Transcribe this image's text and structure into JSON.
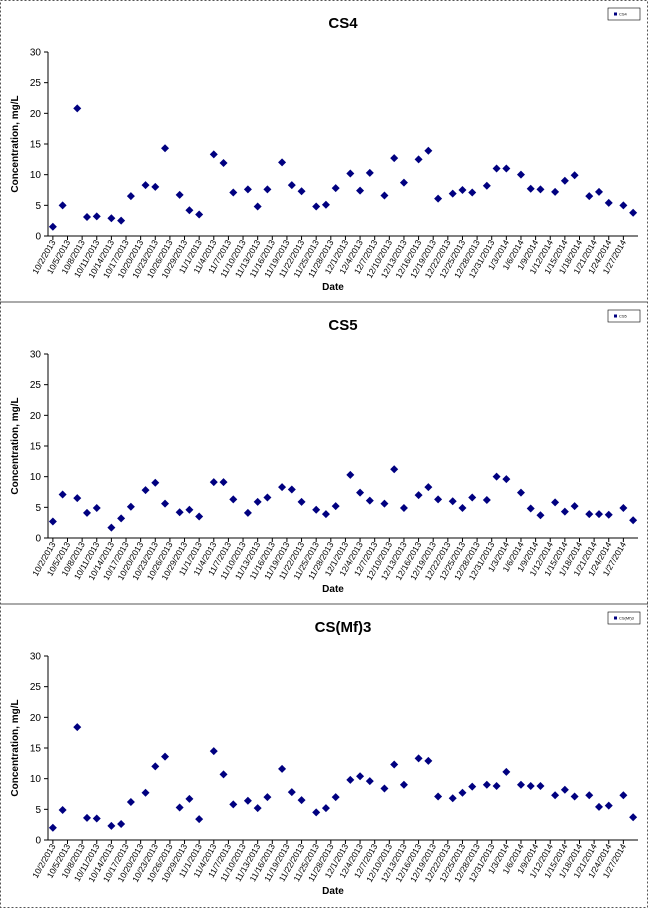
{
  "chart_data": [
    {
      "type": "scatter",
      "title": "CS4",
      "xlabel": "Date",
      "ylabel": "Concentration, mg/L",
      "x": [
        "2013-10-02",
        "2013-10-04",
        "2013-10-07",
        "2013-10-09",
        "2013-10-11",
        "2013-10-14",
        "2013-10-16",
        "2013-10-18",
        "2013-10-21",
        "2013-10-23",
        "2013-10-25",
        "2013-10-28",
        "2013-10-30",
        "2013-11-01",
        "2013-11-04",
        "2013-11-06",
        "2013-11-08",
        "2013-11-11",
        "2013-11-13",
        "2013-11-15",
        "2013-11-18",
        "2013-11-20",
        "2013-11-22",
        "2013-11-25",
        "2013-11-27",
        "2013-11-29",
        "2013-12-02",
        "2013-12-04",
        "2013-12-06",
        "2013-12-09",
        "2013-12-11",
        "2013-12-13",
        "2013-12-16",
        "2013-12-18",
        "2013-12-20",
        "2013-12-23",
        "2013-12-25",
        "2013-12-27",
        "2013-12-30",
        "2014-01-01",
        "2014-01-03",
        "2014-01-06",
        "2014-01-08",
        "2014-01-10",
        "2014-01-13",
        "2014-01-15",
        "2014-01-17",
        "2014-01-20",
        "2014-01-22",
        "2014-01-24",
        "2014-01-27",
        "2014-01-29"
      ],
      "series": [
        {
          "name": "CS4",
          "color": "#000080",
          "values": [
            1.5,
            5,
            20.8,
            3.1,
            3.2,
            2.9,
            2.5,
            6.5,
            8.3,
            8,
            14.3,
            6.7,
            4.2,
            3.5,
            13.3,
            11.9,
            7.1,
            7.6,
            4.8,
            7.6,
            12,
            8.3,
            7.3,
            4.8,
            5.1,
            7.8,
            10.2,
            7.4,
            10.3,
            6.6,
            12.7,
            8.7,
            12.5,
            13.9,
            6.1,
            6.9,
            7.5,
            7.1,
            8.2,
            11,
            11,
            10,
            7.7,
            7.6,
            7.2,
            9,
            9.9,
            6.5,
            7.2,
            5.4,
            5,
            3.8
          ]
        }
      ],
      "xlim": [
        "2013-10-01",
        "2014-01-30"
      ],
      "xticks": [
        {
          "value": "2013-10-02",
          "label": "10/2/2013"
        },
        {
          "value": "2013-10-05",
          "label": "10/5/2013"
        },
        {
          "value": "2013-10-08",
          "label": "10/8/2013"
        },
        {
          "value": "2013-10-11",
          "label": "10/11/2013"
        },
        {
          "value": "2013-10-14",
          "label": "10/14/2013"
        },
        {
          "value": "2013-10-17",
          "label": "10/17/2013"
        },
        {
          "value": "2013-10-20",
          "label": "10/20/2013"
        },
        {
          "value": "2013-10-23",
          "label": "10/23/2013"
        },
        {
          "value": "2013-10-26",
          "label": "10/26/2013"
        },
        {
          "value": "2013-10-29",
          "label": "10/29/2013"
        },
        {
          "value": "2013-11-01",
          "label": "11/1/2013"
        },
        {
          "value": "2013-11-04",
          "label": "11/4/2013"
        },
        {
          "value": "2013-11-07",
          "label": "11/7/2013"
        },
        {
          "value": "2013-11-10",
          "label": "11/10/2013"
        },
        {
          "value": "2013-11-13",
          "label": "11/13/2013"
        },
        {
          "value": "2013-11-16",
          "label": "11/16/2013"
        },
        {
          "value": "2013-11-19",
          "label": "11/19/2013"
        },
        {
          "value": "2013-11-22",
          "label": "11/22/2013"
        },
        {
          "value": "2013-11-25",
          "label": "11/25/2013"
        },
        {
          "value": "2013-11-28",
          "label": "11/28/2013"
        },
        {
          "value": "2013-12-01",
          "label": "12/1/2013"
        },
        {
          "value": "2013-12-04",
          "label": "12/4/2013"
        },
        {
          "value": "2013-12-07",
          "label": "12/7/2013"
        },
        {
          "value": "2013-12-10",
          "label": "12/10/2013"
        },
        {
          "value": "2013-12-13",
          "label": "12/13/2013"
        },
        {
          "value": "2013-12-16",
          "label": "12/16/2013"
        },
        {
          "value": "2013-12-19",
          "label": "12/19/2013"
        },
        {
          "value": "2013-12-22",
          "label": "12/22/2013"
        },
        {
          "value": "2013-12-25",
          "label": "12/25/2013"
        },
        {
          "value": "2013-12-28",
          "label": "12/28/2013"
        },
        {
          "value": "2013-12-31",
          "label": "12/31/2013"
        },
        {
          "value": "2014-01-03",
          "label": "1/3/2014"
        },
        {
          "value": "2014-01-06",
          "label": "1/6/2014"
        },
        {
          "value": "2014-01-09",
          "label": "1/9/2014"
        },
        {
          "value": "2014-01-12",
          "label": "1/12/2014"
        },
        {
          "value": "2014-01-15",
          "label": "1/15/2014"
        },
        {
          "value": "2014-01-18",
          "label": "1/18/2014"
        },
        {
          "value": "2014-01-21",
          "label": "1/21/2014"
        },
        {
          "value": "2014-01-24",
          "label": "1/24/2014"
        },
        {
          "value": "2014-01-27",
          "label": "1/27/2014"
        }
      ],
      "ylim": [
        0,
        30
      ],
      "yticks": [
        0,
        5,
        10,
        15,
        20,
        25,
        30
      ],
      "grid": false,
      "legend": "top-right"
    },
    {
      "type": "scatter",
      "title": "CS5",
      "xlabel": "Date",
      "ylabel": "Concentration, mg/L",
      "x": [
        "2013-10-02",
        "2013-10-04",
        "2013-10-07",
        "2013-10-09",
        "2013-10-11",
        "2013-10-14",
        "2013-10-16",
        "2013-10-18",
        "2013-10-21",
        "2013-10-23",
        "2013-10-25",
        "2013-10-28",
        "2013-10-30",
        "2013-11-01",
        "2013-11-04",
        "2013-11-06",
        "2013-11-08",
        "2013-11-11",
        "2013-11-13",
        "2013-11-15",
        "2013-11-18",
        "2013-11-20",
        "2013-11-22",
        "2013-11-25",
        "2013-11-27",
        "2013-11-29",
        "2013-12-02",
        "2013-12-04",
        "2013-12-06",
        "2013-12-09",
        "2013-12-11",
        "2013-12-13",
        "2013-12-16",
        "2013-12-18",
        "2013-12-20",
        "2013-12-23",
        "2013-12-25",
        "2013-12-27",
        "2013-12-30",
        "2014-01-01",
        "2014-01-03",
        "2014-01-06",
        "2014-01-08",
        "2014-01-10",
        "2014-01-13",
        "2014-01-15",
        "2014-01-17",
        "2014-01-20",
        "2014-01-22",
        "2014-01-24",
        "2014-01-27",
        "2014-01-29"
      ],
      "series": [
        {
          "name": "CS5",
          "color": "#000080",
          "values": [
            2.7,
            7.1,
            6.5,
            4.1,
            4.9,
            1.7,
            3.2,
            5.1,
            7.8,
            9,
            5.6,
            4.2,
            4.6,
            3.5,
            9.1,
            9.1,
            6.3,
            4.1,
            5.9,
            6.6,
            8.3,
            7.9,
            5.9,
            4.6,
            3.9,
            5.2,
            10.3,
            7.4,
            6.1,
            5.6,
            11.2,
            4.9,
            7,
            8.3,
            6.3,
            6,
            4.9,
            6.6,
            6.2,
            10,
            9.6,
            7.4,
            4.8,
            3.7,
            5.8,
            4.3,
            5.2,
            3.9,
            3.9,
            3.8,
            4.9,
            2.9
          ]
        }
      ],
      "xlim": [
        "2013-10-01",
        "2014-01-30"
      ],
      "xticks": [
        {
          "value": "2013-10-02",
          "label": "10/2/2013"
        },
        {
          "value": "2013-10-05",
          "label": "10/5/2013"
        },
        {
          "value": "2013-10-08",
          "label": "10/8/2013"
        },
        {
          "value": "2013-10-11",
          "label": "10/11/2013"
        },
        {
          "value": "2013-10-14",
          "label": "10/14/2013"
        },
        {
          "value": "2013-10-17",
          "label": "10/17/2013"
        },
        {
          "value": "2013-10-20",
          "label": "10/20/2013"
        },
        {
          "value": "2013-10-23",
          "label": "10/23/2013"
        },
        {
          "value": "2013-10-26",
          "label": "10/26/2013"
        },
        {
          "value": "2013-10-29",
          "label": "10/29/2013"
        },
        {
          "value": "2013-11-01",
          "label": "11/1/2013"
        },
        {
          "value": "2013-11-04",
          "label": "11/4/2013"
        },
        {
          "value": "2013-11-07",
          "label": "11/7/2013"
        },
        {
          "value": "2013-11-10",
          "label": "11/10/2013"
        },
        {
          "value": "2013-11-13",
          "label": "11/13/2013"
        },
        {
          "value": "2013-11-16",
          "label": "11/16/2013"
        },
        {
          "value": "2013-11-19",
          "label": "11/19/2013"
        },
        {
          "value": "2013-11-22",
          "label": "11/22/2013"
        },
        {
          "value": "2013-11-25",
          "label": "11/25/2013"
        },
        {
          "value": "2013-11-28",
          "label": "11/28/2013"
        },
        {
          "value": "2013-12-01",
          "label": "12/1/2013"
        },
        {
          "value": "2013-12-04",
          "label": "12/4/2013"
        },
        {
          "value": "2013-12-07",
          "label": "12/7/2013"
        },
        {
          "value": "2013-12-10",
          "label": "12/10/2013"
        },
        {
          "value": "2013-12-13",
          "label": "12/13/2013"
        },
        {
          "value": "2013-12-16",
          "label": "12/16/2013"
        },
        {
          "value": "2013-12-19",
          "label": "12/19/2013"
        },
        {
          "value": "2013-12-22",
          "label": "12/22/2013"
        },
        {
          "value": "2013-12-25",
          "label": "12/25/2013"
        },
        {
          "value": "2013-12-28",
          "label": "12/28/2013"
        },
        {
          "value": "2013-12-31",
          "label": "12/31/2013"
        },
        {
          "value": "2014-01-03",
          "label": "1/3/2014"
        },
        {
          "value": "2014-01-06",
          "label": "1/6/2014"
        },
        {
          "value": "2014-01-09",
          "label": "1/9/2014"
        },
        {
          "value": "2014-01-12",
          "label": "1/12/2014"
        },
        {
          "value": "2014-01-15",
          "label": "1/15/2014"
        },
        {
          "value": "2014-01-18",
          "label": "1/18/2014"
        },
        {
          "value": "2014-01-21",
          "label": "1/21/2014"
        },
        {
          "value": "2014-01-24",
          "label": "1/24/2014"
        },
        {
          "value": "2014-01-27",
          "label": "1/27/2014"
        }
      ],
      "ylim": [
        0,
        30
      ],
      "yticks": [
        0,
        5,
        10,
        15,
        20,
        25,
        30
      ],
      "grid": false,
      "legend": "top-right"
    },
    {
      "type": "scatter",
      "title": "CS(Mf)3",
      "xlabel": "Date",
      "ylabel": "Concentration, mg/L",
      "x": [
        "2013-10-02",
        "2013-10-04",
        "2013-10-07",
        "2013-10-09",
        "2013-10-11",
        "2013-10-14",
        "2013-10-16",
        "2013-10-18",
        "2013-10-21",
        "2013-10-23",
        "2013-10-25",
        "2013-10-28",
        "2013-10-30",
        "2013-11-01",
        "2013-11-04",
        "2013-11-06",
        "2013-11-08",
        "2013-11-11",
        "2013-11-13",
        "2013-11-15",
        "2013-11-18",
        "2013-11-20",
        "2013-11-22",
        "2013-11-25",
        "2013-11-27",
        "2013-11-29",
        "2013-12-02",
        "2013-12-04",
        "2013-12-06",
        "2013-12-09",
        "2013-12-11",
        "2013-12-13",
        "2013-12-16",
        "2013-12-18",
        "2013-12-20",
        "2013-12-23",
        "2013-12-25",
        "2013-12-27",
        "2013-12-30",
        "2014-01-01",
        "2014-01-03",
        "2014-01-06",
        "2014-01-08",
        "2014-01-10",
        "2014-01-13",
        "2014-01-15",
        "2014-01-17",
        "2014-01-20",
        "2014-01-22",
        "2014-01-24",
        "2014-01-27",
        "2014-01-29"
      ],
      "series": [
        {
          "name": "CS(Mf)3",
          "color": "#000080",
          "values": [
            2,
            4.9,
            18.4,
            3.6,
            3.5,
            2.3,
            2.6,
            6.2,
            7.7,
            12,
            13.6,
            5.3,
            6.7,
            3.4,
            14.5,
            10.7,
            5.8,
            6.4,
            5.2,
            7,
            11.6,
            7.8,
            6.5,
            4.5,
            5.2,
            7,
            9.8,
            10.4,
            9.6,
            8.4,
            12.3,
            9,
            13.3,
            12.9,
            7.1,
            6.8,
            7.7,
            8.7,
            9,
            8.8,
            11.1,
            9,
            8.8,
            8.8,
            7.3,
            8.2,
            7.1,
            7.3,
            5.4,
            5.6,
            7.3,
            3.7
          ]
        }
      ],
      "xlim": [
        "2013-10-01",
        "2014-01-30"
      ],
      "xticks": [
        {
          "value": "2013-10-02",
          "label": "10/2/2013"
        },
        {
          "value": "2013-10-05",
          "label": "10/5/2013"
        },
        {
          "value": "2013-10-08",
          "label": "10/8/2013"
        },
        {
          "value": "2013-10-11",
          "label": "10/11/2013"
        },
        {
          "value": "2013-10-14",
          "label": "10/14/2013"
        },
        {
          "value": "2013-10-17",
          "label": "10/17/2013"
        },
        {
          "value": "2013-10-20",
          "label": "10/20/2013"
        },
        {
          "value": "2013-10-23",
          "label": "10/23/2013"
        },
        {
          "value": "2013-10-26",
          "label": "10/26/2013"
        },
        {
          "value": "2013-10-29",
          "label": "10/29/2013"
        },
        {
          "value": "2013-11-01",
          "label": "11/1/2013"
        },
        {
          "value": "2013-11-04",
          "label": "11/4/2013"
        },
        {
          "value": "2013-11-07",
          "label": "11/7/2013"
        },
        {
          "value": "2013-11-10",
          "label": "11/10/2013"
        },
        {
          "value": "2013-11-13",
          "label": "11/13/2013"
        },
        {
          "value": "2013-11-16",
          "label": "11/16/2013"
        },
        {
          "value": "2013-11-19",
          "label": "11/19/2013"
        },
        {
          "value": "2013-11-22",
          "label": "11/22/2013"
        },
        {
          "value": "2013-11-25",
          "label": "11/25/2013"
        },
        {
          "value": "2013-11-28",
          "label": "11/28/2013"
        },
        {
          "value": "2013-12-01",
          "label": "12/1/2013"
        },
        {
          "value": "2013-12-04",
          "label": "12/4/2013"
        },
        {
          "value": "2013-12-07",
          "label": "12/7/2013"
        },
        {
          "value": "2013-12-10",
          "label": "12/10/2013"
        },
        {
          "value": "2013-12-13",
          "label": "12/13/2013"
        },
        {
          "value": "2013-12-16",
          "label": "12/16/2013"
        },
        {
          "value": "2013-12-19",
          "label": "12/19/2013"
        },
        {
          "value": "2013-12-22",
          "label": "12/22/2013"
        },
        {
          "value": "2013-12-25",
          "label": "12/25/2013"
        },
        {
          "value": "2013-12-28",
          "label": "12/28/2013"
        },
        {
          "value": "2013-12-31",
          "label": "12/31/2013"
        },
        {
          "value": "2014-01-03",
          "label": "1/3/2014"
        },
        {
          "value": "2014-01-06",
          "label": "1/6/2014"
        },
        {
          "value": "2014-01-09",
          "label": "1/9/2014"
        },
        {
          "value": "2014-01-12",
          "label": "1/12/2014"
        },
        {
          "value": "2014-01-15",
          "label": "1/15/2014"
        },
        {
          "value": "2014-01-18",
          "label": "1/18/2014"
        },
        {
          "value": "2014-01-21",
          "label": "1/21/2014"
        },
        {
          "value": "2014-01-24",
          "label": "1/24/2014"
        },
        {
          "value": "2014-01-27",
          "label": "1/27/2014"
        }
      ],
      "ylim": [
        0,
        30
      ],
      "yticks": [
        0,
        5,
        10,
        15,
        20,
        25,
        30
      ],
      "grid": false,
      "legend": "top-right"
    }
  ]
}
